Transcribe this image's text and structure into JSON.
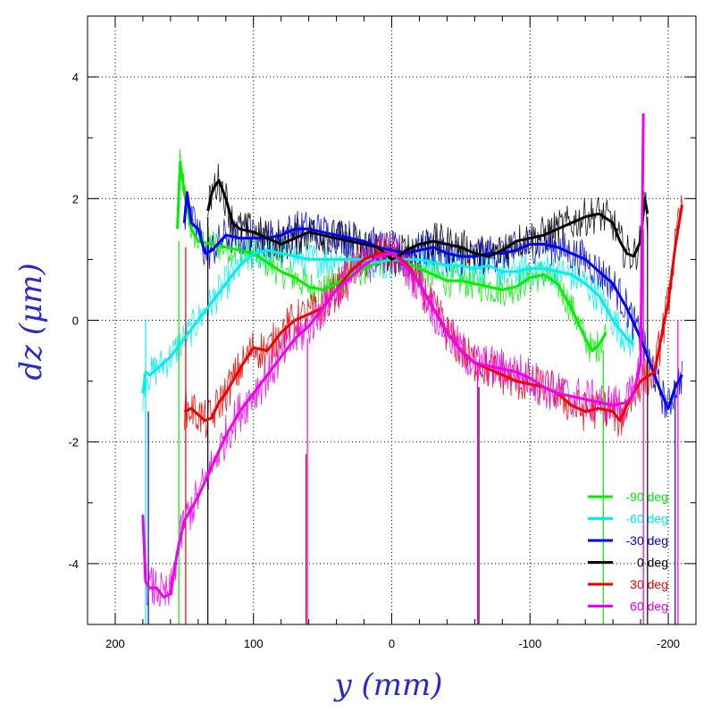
{
  "chart_data": {
    "type": "line",
    "xlabel": "y (mm)",
    "ylabel": "dz (μm)",
    "xlim": [
      220,
      -220
    ],
    "ylim": [
      -5,
      5
    ],
    "xticks": [
      200,
      100,
      0,
      -100,
      -200
    ],
    "yticks": [
      -4,
      -2,
      0,
      2,
      4
    ],
    "x_tick_labels": [
      "200",
      "100",
      "0",
      "-100",
      "-200"
    ],
    "y_tick_labels": [
      "-4",
      "-2",
      "0",
      "2",
      "4"
    ],
    "grid": true,
    "legend_position": "bottom-right",
    "colors": {
      "m90": "#00ee00",
      "m60": "#00eeee",
      "m30": "#0000ee",
      "p0": "#000000",
      "p30": "#ee0000",
      "p60": "#ee00ee"
    },
    "series": [
      {
        "key": "m90",
        "name": "-90 deg",
        "color": "#00ee00",
        "noise": 0.28,
        "x": [
          155,
          153,
          150,
          145,
          140,
          130,
          120,
          110,
          100,
          90,
          80,
          70,
          60,
          50,
          40,
          30,
          20,
          10,
          0,
          -10,
          -20,
          -30,
          -40,
          -50,
          -60,
          -70,
          -80,
          -90,
          -100,
          -110,
          -120,
          -130,
          -140,
          -145,
          -150,
          -155
        ],
        "y": [
          1.5,
          2.6,
          2.1,
          1.5,
          1.3,
          1.25,
          1.2,
          1.15,
          1.1,
          0.95,
          0.8,
          0.7,
          0.55,
          0.5,
          0.6,
          0.75,
          0.85,
          0.95,
          1.0,
          0.95,
          0.85,
          0.75,
          0.65,
          0.65,
          0.6,
          0.55,
          0.5,
          0.55,
          0.7,
          0.75,
          0.6,
          0.2,
          -0.3,
          -0.5,
          -0.4,
          -0.2
        ]
      },
      {
        "key": "m60",
        "name": "-60 deg",
        "color": "#00eeee",
        "noise": 0.3,
        "x": [
          180,
          178,
          175,
          170,
          165,
          160,
          150,
          140,
          130,
          120,
          110,
          100,
          90,
          80,
          70,
          60,
          50,
          40,
          30,
          20,
          10,
          0,
          -10,
          -20,
          -30,
          -40,
          -50,
          -60,
          -70,
          -80,
          -90,
          -100,
          -110,
          -120,
          -130,
          -140,
          -150,
          -160,
          -170,
          -175
        ],
        "y": [
          -1.2,
          -0.85,
          -0.9,
          -0.8,
          -0.7,
          -0.6,
          -0.3,
          0.0,
          0.3,
          0.6,
          0.9,
          1.1,
          1.15,
          1.1,
          1.05,
          1.0,
          1.0,
          1.0,
          1.0,
          1.0,
          0.95,
          1.0,
          1.0,
          1.0,
          0.95,
          0.9,
          0.9,
          0.85,
          0.9,
          0.8,
          0.8,
          0.85,
          0.85,
          0.8,
          0.75,
          0.6,
          0.4,
          0.0,
          -0.3,
          -0.4
        ]
      },
      {
        "key": "m30",
        "name": "-30 deg",
        "color": "#0000ee",
        "noise": 0.32,
        "x": [
          150,
          148,
          145,
          140,
          135,
          130,
          120,
          110,
          100,
          90,
          80,
          70,
          60,
          50,
          40,
          30,
          20,
          10,
          0,
          -10,
          -20,
          -30,
          -40,
          -50,
          -60,
          -70,
          -80,
          -90,
          -100,
          -110,
          -120,
          -130,
          -140,
          -150,
          -160,
          -170,
          -180,
          -190,
          -195,
          -200,
          -205,
          -210
        ],
        "y": [
          1.6,
          2.1,
          1.6,
          1.5,
          1.1,
          1.15,
          1.4,
          1.35,
          1.35,
          1.35,
          1.4,
          1.5,
          1.5,
          1.45,
          1.4,
          1.35,
          1.3,
          1.2,
          1.15,
          1.1,
          1.15,
          1.2,
          1.1,
          1.05,
          1.05,
          1.1,
          1.1,
          1.15,
          1.25,
          1.25,
          1.2,
          1.1,
          1.0,
          0.8,
          0.6,
          0.2,
          -0.3,
          -0.9,
          -1.2,
          -1.45,
          -1.1,
          -0.9
        ]
      },
      {
        "key": "p0",
        "name": "0 deg",
        "color": "#000000",
        "noise": 0.32,
        "x": [
          133,
          130,
          128,
          125,
          120,
          115,
          110,
          100,
          90,
          80,
          70,
          60,
          50,
          40,
          30,
          20,
          10,
          5,
          0,
          -5,
          -10,
          -20,
          -30,
          -40,
          -50,
          -60,
          -70,
          -80,
          -90,
          -100,
          -110,
          -120,
          -130,
          -140,
          -150,
          -160,
          -165,
          -170,
          -175,
          -180,
          -183,
          -185
        ],
        "y": [
          1.8,
          2.1,
          2.2,
          2.3,
          2.0,
          1.6,
          1.5,
          1.45,
          1.35,
          1.25,
          1.35,
          1.45,
          1.4,
          1.35,
          1.3,
          1.25,
          1.2,
          1.1,
          1.0,
          1.05,
          1.15,
          1.25,
          1.3,
          1.25,
          1.2,
          1.1,
          1.05,
          1.15,
          1.3,
          1.35,
          1.4,
          1.5,
          1.6,
          1.7,
          1.75,
          1.6,
          1.3,
          1.1,
          1.05,
          1.3,
          2.0,
          1.75
        ]
      },
      {
        "key": "p30",
        "name": "30 deg",
        "color": "#ee0000",
        "noise": 0.34,
        "x": [
          150,
          145,
          140,
          135,
          130,
          125,
          120,
          110,
          100,
          90,
          80,
          70,
          60,
          50,
          40,
          30,
          20,
          10,
          0,
          -10,
          -20,
          -30,
          -40,
          -50,
          -60,
          -70,
          -80,
          -90,
          -100,
          -110,
          -120,
          -130,
          -140,
          -150,
          -160,
          -165,
          -170,
          -180,
          -190,
          -200,
          -205,
          -210
        ],
        "y": [
          -1.5,
          -1.45,
          -1.55,
          -1.65,
          -1.6,
          -1.35,
          -1.2,
          -0.8,
          -0.45,
          -0.5,
          -0.2,
          0.0,
          0.1,
          0.2,
          0.5,
          0.8,
          1.0,
          1.1,
          1.1,
          0.95,
          0.6,
          0.2,
          -0.2,
          -0.5,
          -0.7,
          -0.8,
          -0.9,
          -1.0,
          -1.05,
          -1.1,
          -1.2,
          -1.4,
          -1.5,
          -1.45,
          -1.5,
          -1.65,
          -1.4,
          -1.0,
          -0.85,
          0.3,
          1.2,
          1.9
        ]
      },
      {
        "key": "p60",
        "name": "60 deg",
        "color": "#ee00ee",
        "noise": 0.36,
        "x": [
          180,
          178,
          175,
          170,
          165,
          160,
          155,
          150,
          140,
          130,
          120,
          110,
          100,
          90,
          80,
          70,
          60,
          50,
          40,
          30,
          20,
          10,
          0,
          -10,
          -20,
          -30,
          -40,
          -50,
          -60,
          -70,
          -80,
          -90,
          -100,
          -110,
          -120,
          -130,
          -140,
          -150,
          -160,
          -170,
          -175,
          -180,
          -182
        ],
        "y": [
          -3.2,
          -4.3,
          -4.4,
          -4.4,
          -4.55,
          -4.5,
          -3.8,
          -3.3,
          -2.9,
          -2.4,
          -1.9,
          -1.5,
          -1.2,
          -0.9,
          -0.6,
          -0.3,
          -0.1,
          0.2,
          0.5,
          0.7,
          0.9,
          1.05,
          1.1,
          0.9,
          0.6,
          0.2,
          -0.2,
          -0.5,
          -0.7,
          -0.75,
          -0.8,
          -0.85,
          -0.95,
          -1.1,
          -1.2,
          -1.25,
          -1.3,
          -1.35,
          -1.4,
          -1.35,
          -1.2,
          -0.7,
          3.4
        ]
      }
    ],
    "spikes": [
      {
        "x": 178,
        "y_top": 0.0,
        "color": "#00eeee"
      },
      {
        "x": 176,
        "y_top": -1.5,
        "color": "#0000ee"
      },
      {
        "x": 154,
        "y_top": 1.3,
        "color": "#00ee00"
      },
      {
        "x": 149,
        "y_top": 1.2,
        "color": "#ee0000"
      },
      {
        "x": 133,
        "y_top": 1.7,
        "color": "#000000"
      },
      {
        "x": 62,
        "y_top": -2.2,
        "color": "#ee0000"
      },
      {
        "x": 61,
        "y_top": -0.3,
        "color": "#ee00ee"
      },
      {
        "x": -62,
        "y_top": -0.7,
        "color": "#ee00ee"
      },
      {
        "x": -63,
        "y_top": -1.1,
        "color": "#000000"
      },
      {
        "x": -153,
        "y_top": -0.5,
        "color": "#00ee00"
      },
      {
        "x": -182,
        "y_top": 1.5,
        "color": "#ee00ee"
      },
      {
        "x": -185,
        "y_top": 1.7,
        "color": "#000000"
      },
      {
        "x": -205,
        "y_top": -1.0,
        "color": "#0000ee"
      },
      {
        "x": -207,
        "y_top": 0.0,
        "color": "#ee00ee"
      }
    ]
  }
}
